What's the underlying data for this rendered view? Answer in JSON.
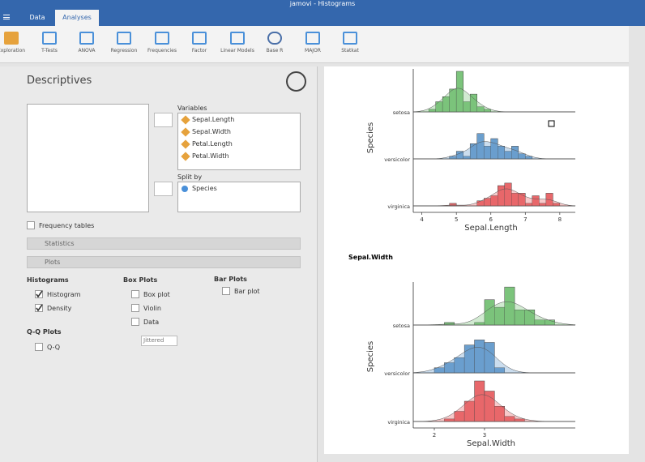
{
  "app": {
    "title": "jamovi - Histograms",
    "tabs": [
      "Data",
      "Analyses"
    ],
    "toolbar": [
      "Exploration",
      "T-Tests",
      "ANOVA",
      "Regression",
      "Frequencies",
      "Factor",
      "Linear Models",
      "Base R",
      "MAJOR",
      "Statkat"
    ]
  },
  "options": {
    "title": "Descriptives",
    "variables_label": "Variables",
    "variables": [
      "Sepal.Length",
      "Sepal.Width",
      "Petal.Length",
      "Petal.Width"
    ],
    "split_label": "Split by",
    "split_vars": [
      "Species"
    ],
    "frequency_tables": {
      "label": "Frequency tables",
      "checked": false
    },
    "sections": [
      "Statistics",
      "Plots"
    ],
    "histograms": {
      "title": "Histograms",
      "items": [
        {
          "label": "Histogram",
          "checked": true
        },
        {
          "label": "Density",
          "checked": true
        }
      ]
    },
    "box_plots": {
      "title": "Box Plots",
      "items": [
        {
          "label": "Box plot",
          "checked": false
        },
        {
          "label": "Violin",
          "checked": false
        },
        {
          "label": "Data",
          "checked": false
        }
      ],
      "dropdown": "Jittered"
    },
    "bar_plots": {
      "title": "Bar Plots",
      "items": [
        {
          "label": "Bar plot",
          "checked": false
        }
      ]
    },
    "qq_plots": {
      "title": "Q-Q Plots",
      "items": [
        {
          "label": "Q-Q",
          "checked": false
        }
      ]
    }
  },
  "results": {
    "plots": [
      {
        "type": "histogram",
        "x_label": "Sepal.Length",
        "y_label": "Species",
        "categories": [
          "setosa",
          "versicolor",
          "virginica"
        ],
        "xlim": [
          3.75,
          8.45
        ],
        "xticks": [
          4,
          5,
          6,
          7,
          8
        ],
        "bins": [
          4.2,
          4.4,
          4.6,
          4.8,
          5.0,
          5.2,
          5.4,
          5.6,
          5.8,
          6.0,
          6.2,
          6.4,
          6.6,
          6.8,
          7.0,
          7.2,
          7.4,
          7.6,
          7.8,
          8.0
        ],
        "series": [
          {
            "color": "#7cc47c",
            "values": [
              1,
              4,
              6,
              9,
              16,
              4,
              7,
              2,
              1,
              0,
              0,
              0,
              0,
              0,
              0,
              0,
              0,
              0,
              0
            ]
          },
          {
            "color": "#6b9fce",
            "values": [
              0,
              0,
              0,
              1,
              3,
              1,
              6,
              10,
              5,
              8,
              5,
              3,
              5,
              2,
              1,
              0,
              0,
              0,
              0
            ]
          },
          {
            "color": "#e8686b",
            "values": [
              0,
              0,
              0,
              1,
              0,
              0,
              0,
              2,
              3,
              4,
              8,
              9,
              5,
              5,
              1,
              4,
              1,
              5,
              1
            ]
          }
        ]
      },
      {
        "type": "histogram",
        "title": "Sepal.Width",
        "x_label": "Sepal.Width",
        "y_label": "Species",
        "categories": [
          "setosa",
          "versicolor",
          "virginica"
        ],
        "xlim": [
          1.58,
          4.81
        ],
        "xticks": [
          2,
          3
        ],
        "bins": [
          2.0,
          2.2,
          2.4,
          2.6,
          2.8,
          3.0,
          3.2,
          3.4,
          3.6,
          3.8,
          4.0,
          4.2,
          4.4
        ],
        "series": [
          {
            "color": "#7cc47c",
            "values": [
              0,
              1,
              0,
              0,
              1,
              10,
              7,
              15,
              6,
              6,
              2,
              2
            ]
          },
          {
            "color": "#6b9fce",
            "values": [
              2,
              4,
              6,
              11,
              13,
              12,
              2,
              0,
              0,
              0,
              0,
              0
            ]
          },
          {
            "color": "#e8686b",
            "values": [
              0,
              1,
              4,
              8,
              16,
              12,
              6,
              2,
              1,
              0,
              0,
              0
            ]
          }
        ]
      }
    ]
  }
}
